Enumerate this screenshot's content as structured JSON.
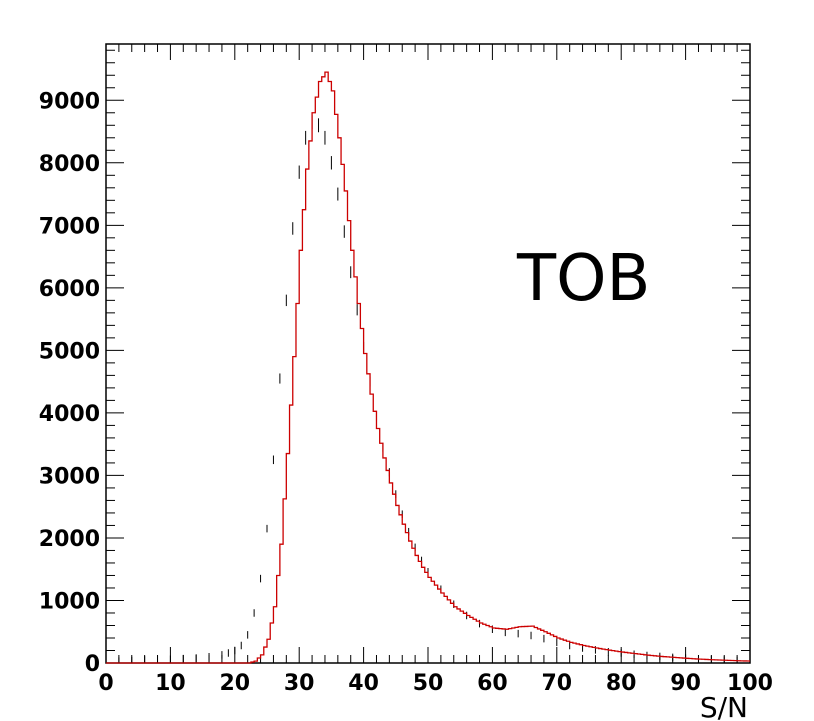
{
  "chart_data": {
    "type": "histogram",
    "title": "",
    "xlabel": "S/N",
    "ylabel": "",
    "xlim": [
      0,
      100
    ],
    "ylim": [
      0,
      9900
    ],
    "x_ticks": [
      0,
      10,
      20,
      30,
      40,
      50,
      60,
      70,
      80,
      90,
      100
    ],
    "x_tick_labels": [
      "0",
      "10",
      "20",
      "30",
      "40",
      "50",
      "60",
      "70",
      "80",
      "90",
      "100"
    ],
    "y_ticks": [
      0,
      1000,
      2000,
      3000,
      4000,
      5000,
      6000,
      7000,
      8000,
      9000
    ],
    "y_tick_labels": [
      "0",
      "1000",
      "2000",
      "3000",
      "4000",
      "5000",
      "6000",
      "7000",
      "8000",
      "9000"
    ],
    "annotation": "TOB",
    "grid": false,
    "legend": "none",
    "series": [
      {
        "style": "histogram-step",
        "color": "#cc0000",
        "x": [
          0,
          2,
          4,
          6,
          8,
          10,
          12,
          14,
          16,
          18,
          20,
          21,
          22,
          23,
          24,
          25,
          26,
          27,
          28,
          29,
          30,
          31,
          32,
          33,
          34,
          35,
          36,
          37,
          38,
          39,
          40,
          41,
          42,
          43,
          44,
          45,
          46,
          47,
          48,
          49,
          50,
          52,
          54,
          56,
          58,
          60,
          62,
          64,
          66,
          68,
          70,
          72,
          74,
          76,
          78,
          80,
          82,
          84,
          86,
          88,
          90,
          92,
          94,
          96,
          98,
          100
        ],
        "y": [
          0,
          0,
          0,
          0,
          0,
          0,
          0,
          0,
          0,
          0,
          0,
          0,
          0,
          30,
          130,
          380,
          900,
          1900,
          3350,
          4900,
          6600,
          7900,
          8800,
          9300,
          9450,
          9150,
          8400,
          7550,
          6600,
          5750,
          4950,
          4300,
          3750,
          3280,
          2880,
          2520,
          2220,
          1950,
          1720,
          1530,
          1370,
          1120,
          900,
          760,
          640,
          560,
          540,
          580,
          590,
          500,
          400,
          330,
          280,
          240,
          205,
          175,
          150,
          125,
          105,
          90,
          75,
          62,
          52,
          44,
          36,
          30
        ]
      },
      {
        "style": "points-with-error-bars",
        "color": "#000000",
        "x": [
          2,
          4,
          6,
          8,
          10,
          12,
          14,
          16,
          18,
          19,
          20,
          21,
          22,
          23,
          24,
          25,
          26,
          27,
          28,
          29,
          30,
          31,
          32,
          33,
          34,
          35,
          36,
          37,
          38,
          39,
          40,
          41,
          42,
          43,
          44,
          45,
          46,
          47,
          48,
          49,
          50,
          52,
          54,
          56,
          58,
          60,
          62,
          64,
          66,
          68,
          70,
          72,
          74,
          76,
          78,
          80,
          82,
          84,
          86,
          88,
          90,
          92,
          94,
          96,
          98,
          100
        ],
        "y": [
          30,
          40,
          50,
          60,
          60,
          70,
          80,
          100,
          130,
          160,
          200,
          280,
          450,
          800,
          1350,
          2150,
          3250,
          4550,
          5800,
          6950,
          7850,
          8400,
          8650,
          8600,
          8400,
          8000,
          7500,
          6900,
          6250,
          5650,
          5050,
          4500,
          3950,
          3450,
          3050,
          2700,
          2380,
          2100,
          1850,
          1640,
          1460,
          1180,
          940,
          760,
          630,
          540,
          490,
          470,
          440,
          390,
          330,
          280,
          240,
          210,
          180,
          160,
          140,
          120,
          105,
          90,
          78,
          66,
          56,
          48,
          40,
          34
        ]
      }
    ]
  }
}
